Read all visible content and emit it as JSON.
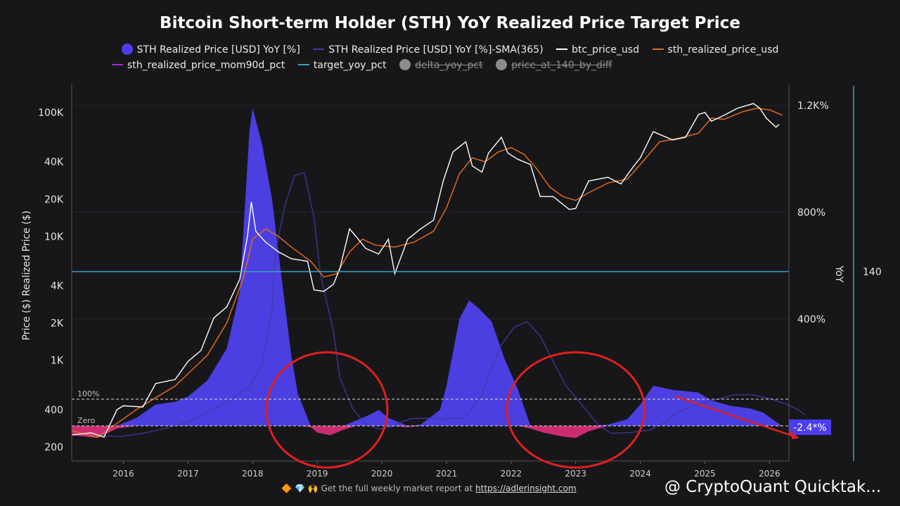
{
  "chart_data": {
    "type": "line",
    "title": "Bitcoin Short-term Holder (STH) YoY Realized Price Target Price",
    "ylabel_left": "Price ($) Realized Price ($)",
    "ylabel_right": "YoY",
    "y_left_scale": "log",
    "y_left_ticks": [
      "100K",
      "40K",
      "20K",
      "10K",
      "4K",
      "2K",
      "1K",
      "400",
      "200"
    ],
    "y_left_tick_values": [
      100000,
      40000,
      20000,
      10000,
      4000,
      2000,
      1000,
      400,
      200
    ],
    "y_right_ticks": [
      "1.2K%",
      "800%",
      "400%"
    ],
    "y_right_tick_values": [
      1200,
      800,
      400
    ],
    "far_right_tick": "140",
    "x_ticks": [
      "2016",
      "2017",
      "2018",
      "2019",
      "2020",
      "2021",
      "2022",
      "2023",
      "2024",
      "2025",
      "2026"
    ],
    "ref_lines": [
      {
        "label": "100%",
        "value": 100
      },
      {
        "label": "Zero",
        "value": 0
      }
    ],
    "current_value_label": "-2.4*%",
    "target_yoy_price": 5200,
    "legend": [
      {
        "label": "STH Realized Price [USD] YoY [%]",
        "color": "#4d3df0",
        "kind": "dot",
        "enabled": true
      },
      {
        "label": "STH Realized Price [USD] YoY [%]-SMA(365)",
        "color": "#403aa6",
        "kind": "line",
        "enabled": true
      },
      {
        "label": "btc_price_usd",
        "color": "#ffffff",
        "kind": "line",
        "enabled": true
      },
      {
        "label": "sth_realized_price_usd",
        "color": "#e06a1b",
        "kind": "line",
        "enabled": true
      },
      {
        "label": "sth_realized_price_mom90d_pct",
        "color": "#a12ad6",
        "kind": "line",
        "enabled": true
      },
      {
        "label": "target_yoy_pct",
        "color": "#3aa3c4",
        "kind": "line",
        "enabled": true
      },
      {
        "label": "delta_yoy_pct",
        "color": "#8c8c8c",
        "kind": "dot",
        "enabled": false
      },
      {
        "label": "price_at_140_by_diff",
        "color": "#8c8c8c",
        "kind": "dot",
        "enabled": false
      }
    ],
    "series": [
      {
        "name": "btc_price_usd",
        "points": [
          [
            2015.2,
            250
          ],
          [
            2015.5,
            260
          ],
          [
            2015.7,
            240
          ],
          [
            2015.9,
            400
          ],
          [
            2016.0,
            430
          ],
          [
            2016.3,
            420
          ],
          [
            2016.5,
            650
          ],
          [
            2016.8,
            700
          ],
          [
            2017.0,
            980
          ],
          [
            2017.2,
            1200
          ],
          [
            2017.4,
            2200
          ],
          [
            2017.6,
            2700
          ],
          [
            2017.8,
            4500
          ],
          [
            2017.92,
            10000
          ],
          [
            2017.98,
            19000
          ],
          [
            2018.05,
            11000
          ],
          [
            2018.2,
            9000
          ],
          [
            2018.4,
            7500
          ],
          [
            2018.6,
            6600
          ],
          [
            2018.85,
            6300
          ],
          [
            2018.95,
            3700
          ],
          [
            2019.1,
            3600
          ],
          [
            2019.25,
            4100
          ],
          [
            2019.35,
            5500
          ],
          [
            2019.5,
            11500
          ],
          [
            2019.6,
            10000
          ],
          [
            2019.75,
            8000
          ],
          [
            2019.95,
            7200
          ],
          [
            2020.1,
            9500
          ],
          [
            2020.2,
            5000
          ],
          [
            2020.4,
            9500
          ],
          [
            2020.6,
            11500
          ],
          [
            2020.8,
            13500
          ],
          [
            2020.95,
            28000
          ],
          [
            2021.1,
            48000
          ],
          [
            2021.3,
            58000
          ],
          [
            2021.4,
            37000
          ],
          [
            2021.55,
            33000
          ],
          [
            2021.65,
            47000
          ],
          [
            2021.85,
            63000
          ],
          [
            2021.95,
            47000
          ],
          [
            2022.1,
            42000
          ],
          [
            2022.3,
            38000
          ],
          [
            2022.45,
            21000
          ],
          [
            2022.65,
            21000
          ],
          [
            2022.9,
            16500
          ],
          [
            2023.0,
            16800
          ],
          [
            2023.2,
            28000
          ],
          [
            2023.5,
            30000
          ],
          [
            2023.7,
            26500
          ],
          [
            2023.9,
            37000
          ],
          [
            2024.0,
            43000
          ],
          [
            2024.2,
            70000
          ],
          [
            2024.5,
            60000
          ],
          [
            2024.7,
            63000
          ],
          [
            2024.9,
            96000
          ],
          [
            2025.0,
            100000
          ],
          [
            2025.1,
            85000
          ],
          [
            2025.3,
            95000
          ],
          [
            2025.5,
            108000
          ],
          [
            2025.75,
            118000
          ],
          [
            2025.85,
            108000
          ],
          [
            2025.95,
            90000
          ],
          [
            2026.1,
            76000
          ],
          [
            2026.15,
            80000
          ]
        ]
      },
      {
        "name": "sth_realized_price_usd",
        "points": [
          [
            2015.2,
            270
          ],
          [
            2015.6,
            240
          ],
          [
            2015.9,
            310
          ],
          [
            2016.2,
            400
          ],
          [
            2016.5,
            500
          ],
          [
            2016.8,
            620
          ],
          [
            2017.0,
            780
          ],
          [
            2017.3,
            1100
          ],
          [
            2017.6,
            2000
          ],
          [
            2017.85,
            4500
          ],
          [
            2018.0,
            9500
          ],
          [
            2018.2,
            11500
          ],
          [
            2018.4,
            10000
          ],
          [
            2018.6,
            8200
          ],
          [
            2018.9,
            6300
          ],
          [
            2019.1,
            4700
          ],
          [
            2019.3,
            5000
          ],
          [
            2019.5,
            7500
          ],
          [
            2019.7,
            9500
          ],
          [
            2019.9,
            8500
          ],
          [
            2020.2,
            8200
          ],
          [
            2020.5,
            9000
          ],
          [
            2020.8,
            11000
          ],
          [
            2021.0,
            17000
          ],
          [
            2021.2,
            32000
          ],
          [
            2021.4,
            43000
          ],
          [
            2021.6,
            40000
          ],
          [
            2021.8,
            48000
          ],
          [
            2022.0,
            52000
          ],
          [
            2022.2,
            46000
          ],
          [
            2022.4,
            35000
          ],
          [
            2022.6,
            25000
          ],
          [
            2022.8,
            21000
          ],
          [
            2023.0,
            19500
          ],
          [
            2023.2,
            22500
          ],
          [
            2023.5,
            27000
          ],
          [
            2023.8,
            29000
          ],
          [
            2024.0,
            38000
          ],
          [
            2024.3,
            58000
          ],
          [
            2024.6,
            62000
          ],
          [
            2024.9,
            68000
          ],
          [
            2025.1,
            90000
          ],
          [
            2025.3,
            88000
          ],
          [
            2025.6,
            102000
          ],
          [
            2025.8,
            108000
          ],
          [
            2026.0,
            105000
          ],
          [
            2026.2,
            95000
          ]
        ]
      },
      {
        "name": "STH Realized Price [USD] YoY [%]",
        "points": [
          [
            2015.2,
            -35
          ],
          [
            2015.6,
            -45
          ],
          [
            2015.9,
            -10
          ],
          [
            2016.2,
            30
          ],
          [
            2016.5,
            80
          ],
          [
            2016.8,
            90
          ],
          [
            2017.0,
            110
          ],
          [
            2017.3,
            170
          ],
          [
            2017.6,
            290
          ],
          [
            2017.8,
            500
          ],
          [
            2017.95,
            1100
          ],
          [
            2018.0,
            1190
          ],
          [
            2018.15,
            1050
          ],
          [
            2018.3,
            850
          ],
          [
            2018.45,
            550
          ],
          [
            2018.6,
            260
          ],
          [
            2018.7,
            120
          ],
          [
            2018.9,
            -5
          ],
          [
            2019.0,
            -25
          ],
          [
            2019.2,
            -35
          ],
          [
            2019.4,
            -15
          ],
          [
            2019.6,
            20
          ],
          [
            2019.8,
            40
          ],
          [
            2019.95,
            60
          ],
          [
            2020.1,
            30
          ],
          [
            2020.4,
            -5
          ],
          [
            2020.6,
            5
          ],
          [
            2020.9,
            60
          ],
          [
            2021.0,
            150
          ],
          [
            2021.2,
            400
          ],
          [
            2021.35,
            470
          ],
          [
            2021.5,
            440
          ],
          [
            2021.7,
            390
          ],
          [
            2021.9,
            250
          ],
          [
            2022.1,
            140
          ],
          [
            2022.3,
            -10
          ],
          [
            2022.5,
            -25
          ],
          [
            2022.8,
            -40
          ],
          [
            2023.0,
            -45
          ],
          [
            2023.2,
            -20
          ],
          [
            2023.5,
            5
          ],
          [
            2023.8,
            25
          ],
          [
            2024.0,
            80
          ],
          [
            2024.2,
            150
          ],
          [
            2024.5,
            135
          ],
          [
            2024.9,
            125
          ],
          [
            2025.1,
            95
          ],
          [
            2025.4,
            75
          ],
          [
            2025.7,
            65
          ],
          [
            2025.9,
            50
          ],
          [
            2026.1,
            15
          ],
          [
            2026.2,
            -2.4
          ]
        ]
      }
    ]
  },
  "footer": {
    "emoji": "🔶 💎 🙌",
    "text": "Get the full weekly market report at",
    "link": "https://adlerinsight.com"
  },
  "brand": "@ CryptoQuant Quicktak..."
}
